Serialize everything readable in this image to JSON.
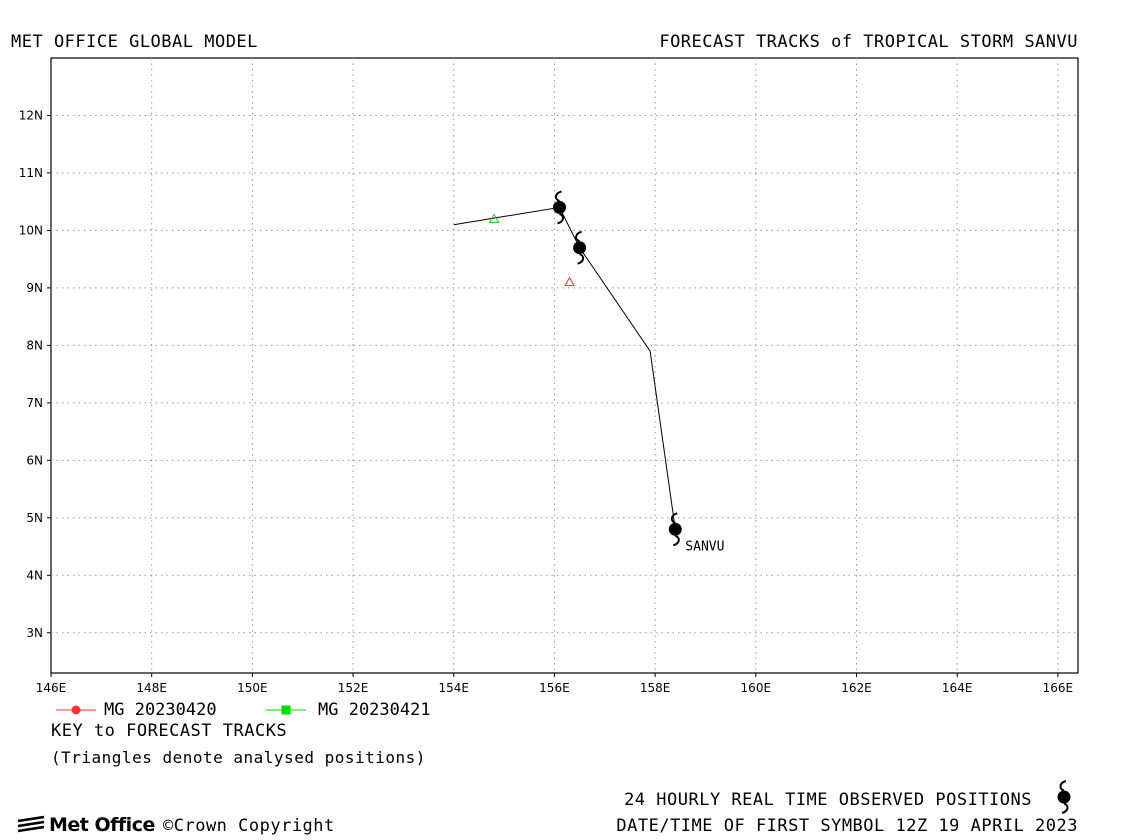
{
  "header": {
    "title_left": "MET OFFICE GLOBAL MODEL",
    "title_right": "FORECAST TRACKS of TROPICAL STORM SANVU"
  },
  "map": {
    "lon_range": [
      146,
      166.4
    ],
    "lat_range": [
      2.3,
      13.0
    ],
    "lon_ticks": [
      "146E",
      "148E",
      "150E",
      "152E",
      "154E",
      "156E",
      "158E",
      "160E",
      "162E",
      "164E",
      "166E"
    ],
    "lat_ticks": [
      "3N",
      "4N",
      "5N",
      "6N",
      "7N",
      "8N",
      "9N",
      "10N",
      "11N",
      "12N"
    ],
    "grid": true,
    "grid_style": "dotted"
  },
  "storm": {
    "name": "SANVU",
    "observed_positions": [
      {
        "lon": 158.4,
        "lat": 4.8
      },
      {
        "lon": 156.5,
        "lat": 9.7
      },
      {
        "lon": 156.1,
        "lat": 10.4
      }
    ],
    "observed_track": [
      {
        "lon": 158.4,
        "lat": 4.8
      },
      {
        "lon": 157.9,
        "lat": 7.9
      },
      {
        "lon": 156.5,
        "lat": 9.7
      },
      {
        "lon": 156.1,
        "lat": 10.4
      },
      {
        "lon": 154.0,
        "lat": 10.1
      }
    ]
  },
  "analysed_positions": [
    {
      "lon": 156.3,
      "lat": 9.1,
      "color": "#ff3030"
    },
    {
      "lon": 154.8,
      "lat": 10.2,
      "color": "#20c020"
    }
  ],
  "legend": {
    "items": [
      {
        "label": "MG 20230420",
        "color": "#ff3030",
        "marker": "circle"
      },
      {
        "label": "MG 20230421",
        "color": "#00dd00",
        "marker": "square"
      }
    ],
    "key_title": "KEY to FORECAST TRACKS",
    "key_note": "(Triangles denote analysed positions)"
  },
  "footer": {
    "observed_label": "24 HOURLY REAL TIME OBSERVED POSITIONS",
    "datetime_label": "DATE/TIME OF FIRST SYMBOL 12Z 19 APRIL 2023",
    "logo_text": "Met Office",
    "copyright": "©Crown Copyright"
  }
}
